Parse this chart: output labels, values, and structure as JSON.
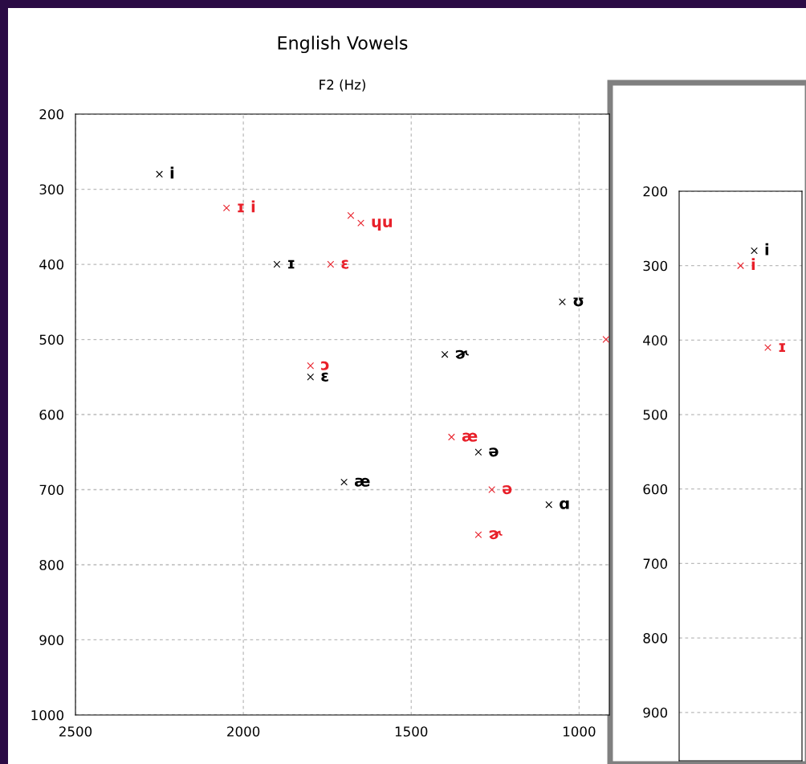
{
  "chart_data": [
    {
      "type": "scatter",
      "title": "English Vowels",
      "xlabel": "F2 (Hz)",
      "xlim": [
        2500,
        910
      ],
      "xticks": [
        2500,
        2000,
        1500,
        1000
      ],
      "ylim": [
        1000,
        200
      ],
      "yticks": [
        200,
        300,
        400,
        500,
        600,
        700,
        800,
        900,
        1000
      ],
      "grid": true,
      "marker": "cross",
      "series": [
        {
          "color": "#000000",
          "x": [
            2250,
            1900,
            1800,
            1400,
            1050,
            1300,
            1700,
            1090
          ],
          "values": [
            280,
            400,
            550,
            520,
            450,
            650,
            690,
            720
          ],
          "value_labels": [
            "i",
            "ɪ",
            "ɛ",
            "ɚ",
            "ʊ",
            "ə",
            "æ",
            "ɑ"
          ]
        },
        {
          "color": "#e8202a",
          "x": [
            2050,
            1680,
            1650,
            1740,
            1800,
            1380,
            1260,
            1300,
            920
          ],
          "values": [
            325,
            335,
            345,
            400,
            535,
            630,
            700,
            760,
            500
          ],
          "value_labels": [
            "ɪ i",
            null,
            "ɥu",
            "ɛ",
            "ɔ",
            "æ",
            "ə",
            "ɚ",
            null
          ]
        }
      ]
    },
    {
      "type": "scatter",
      "categories": [
        null,
        null,
        null,
        null,
        null,
        null,
        null,
        null,
        null
      ],
      "ylim": [
        965,
        200
      ],
      "yticks": [
        200,
        300,
        400,
        500,
        600,
        700,
        800,
        900
      ],
      "grid": "y",
      "marker": "cross",
      "series": [
        {
          "color": "#000000",
          "values": [
            null,
            null,
            null,
            null,
            null,
            280,
            null,
            null,
            null
          ],
          "value_labels": [
            null,
            null,
            null,
            null,
            null,
            "i",
            null,
            null,
            null
          ]
        },
        {
          "color": "#e8202a",
          "values": [
            null,
            null,
            null,
            null,
            300,
            null,
            410,
            null,
            null
          ],
          "value_labels": [
            null,
            null,
            null,
            null,
            "i",
            null,
            "ɪ",
            null,
            null
          ]
        }
      ]
    }
  ]
}
